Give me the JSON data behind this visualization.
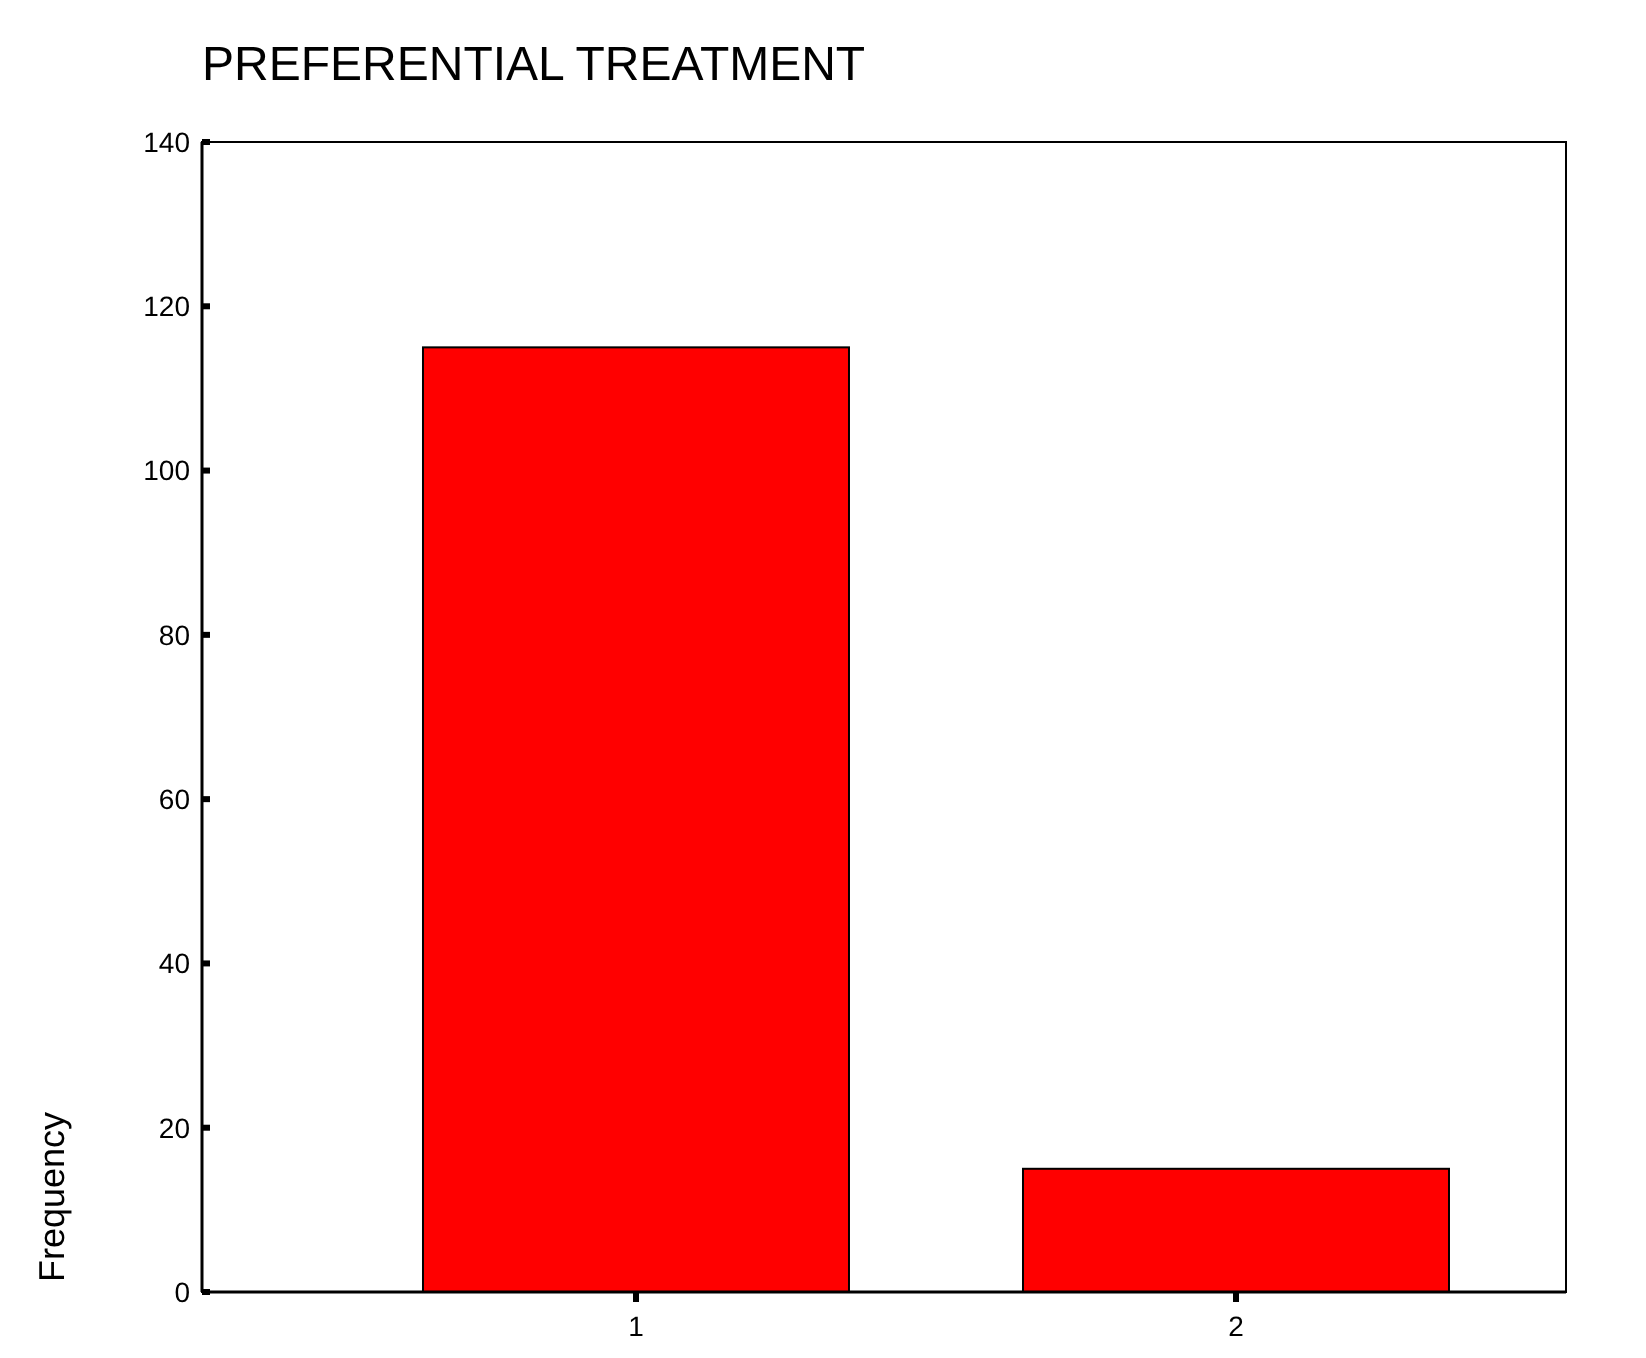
{
  "chart_data": {
    "type": "bar",
    "title": "PREFERENTIAL TREATMENT",
    "ylabel": "Frequency",
    "categories": [
      "1",
      "2"
    ],
    "values": [
      115,
      15
    ],
    "color": "#ff0000",
    "ylim": [
      0,
      140
    ],
    "yticks": [
      0,
      20,
      40,
      60,
      80,
      100,
      120,
      140
    ],
    "grid": false
  }
}
